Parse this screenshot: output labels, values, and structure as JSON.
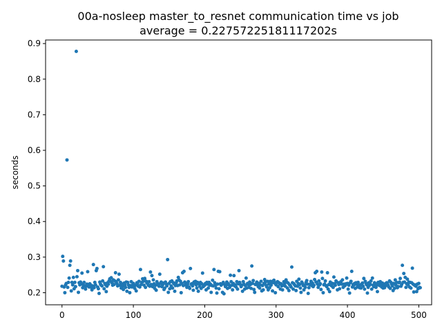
{
  "chart_data": {
    "type": "scatter",
    "title": "00a-nosleep master_to_resnet communication time vs job",
    "subtitle": "average = 0.22757225181117202s",
    "xlabel": "",
    "ylabel": "seconds",
    "xlim": [
      -23,
      518
    ],
    "ylim": [
      0.166,
      0.91
    ],
    "xticks": [
      0,
      100,
      200,
      300,
      400,
      500
    ],
    "xtick_labels": [
      "0",
      "100",
      "200",
      "300",
      "400",
      "500"
    ],
    "yticks": [
      0.2,
      0.3,
      0.4,
      0.5,
      0.6,
      0.7,
      0.8,
      0.9
    ],
    "ytick_labels": [
      "0.2",
      "0.3",
      "0.4",
      "0.5",
      "0.6",
      "0.7",
      "0.8",
      "0.9"
    ],
    "grid": false,
    "marker_color": "#1f77b4",
    "series": [
      {
        "values": [
          0.218,
          0.302,
          0.289,
          0.216,
          0.2,
          0.222,
          0.226,
          0.573,
          0.215,
          0.229,
          0.241,
          0.277,
          0.289,
          0.205,
          0.229,
          0.222,
          0.243,
          0.211,
          0.229,
          0.217,
          0.878,
          0.245,
          0.262,
          0.201,
          0.228,
          0.222,
          0.23,
          0.225,
          0.255,
          0.214,
          0.221,
          0.229,
          0.219,
          0.21,
          0.218,
          0.224,
          0.259,
          0.22,
          0.216,
          0.225,
          0.222,
          0.215,
          0.208,
          0.219,
          0.279,
          0.214,
          0.229,
          0.222,
          0.262,
          0.268,
          0.216,
          0.211,
          0.198,
          0.23,
          0.224,
          0.221,
          0.219,
          0.233,
          0.273,
          0.211,
          0.226,
          0.222,
          0.203,
          0.218,
          0.228,
          0.224,
          0.233,
          0.239,
          0.232,
          0.242,
          0.228,
          0.221,
          0.236,
          0.223,
          0.233,
          0.256,
          0.231,
          0.226,
          0.219,
          0.236,
          0.252,
          0.221,
          0.229,
          0.213,
          0.224,
          0.218,
          0.209,
          0.227,
          0.222,
          0.215,
          0.23,
          0.204,
          0.229,
          0.222,
          0.215,
          0.2,
          0.22,
          0.231,
          0.216,
          0.222,
          0.226,
          0.217,
          0.212,
          0.221,
          0.205,
          0.228,
          0.224,
          0.218,
          0.232,
          0.216,
          0.265,
          0.223,
          0.229,
          0.239,
          0.232,
          0.221,
          0.24,
          0.215,
          0.232,
          0.227,
          0.226,
          0.221,
          0.231,
          0.218,
          0.258,
          0.223,
          0.248,
          0.217,
          0.236,
          0.225,
          0.212,
          0.221,
          0.207,
          0.231,
          0.226,
          0.221,
          0.218,
          0.252,
          0.226,
          0.23,
          0.217,
          0.222,
          0.227,
          0.209,
          0.213,
          0.23,
          0.224,
          0.219,
          0.293,
          0.201,
          0.226,
          0.211,
          0.231,
          0.219,
          0.233,
          0.213,
          0.228,
          0.225,
          0.204,
          0.22,
          0.228,
          0.233,
          0.22,
          0.243,
          0.236,
          0.222,
          0.232,
          0.2,
          0.226,
          0.256,
          0.22,
          0.26,
          0.23,
          0.227,
          0.221,
          0.215,
          0.224,
          0.231,
          0.216,
          0.212,
          0.268,
          0.224,
          0.225,
          0.219,
          0.207,
          0.23,
          0.226,
          0.232,
          0.222,
          0.213,
          0.229,
          0.204,
          0.225,
          0.218,
          0.229,
          0.212,
          0.225,
          0.255,
          0.217,
          0.221,
          0.221,
          0.226,
          0.208,
          0.229,
          0.224,
          0.213,
          0.229,
          0.221,
          0.224,
          0.201,
          0.22,
          0.235,
          0.219,
          0.265,
          0.228,
          0.221,
          0.213,
          0.199,
          0.224,
          0.26,
          0.211,
          0.259,
          0.225,
          0.221,
          0.224,
          0.201,
          0.229,
          0.197,
          0.223,
          0.217,
          0.221,
          0.23,
          0.212,
          0.225,
          0.222,
          0.215,
          0.249,
          0.231,
          0.221,
          0.208,
          0.226,
          0.248,
          0.219,
          0.222,
          0.216,
          0.231,
          0.21,
          0.225,
          0.262,
          0.229,
          0.223,
          0.217,
          0.221,
          0.204,
          0.231,
          0.224,
          0.21,
          0.22,
          0.241,
          0.213,
          0.226,
          0.223,
          0.215,
          0.23,
          0.223,
          0.212,
          0.275,
          0.226,
          0.234,
          0.209,
          0.201,
          0.223,
          0.225,
          0.23,
          0.222,
          0.217,
          0.226,
          0.213,
          0.222,
          0.232,
          0.205,
          0.22,
          0.208,
          0.226,
          0.237,
          0.23,
          0.221,
          0.216,
          0.232,
          0.208,
          0.224,
          0.214,
          0.232,
          0.221,
          0.227,
          0.205,
          0.233,
          0.235,
          0.227,
          0.2,
          0.222,
          0.229,
          0.231,
          0.217,
          0.228,
          0.225,
          0.21,
          0.225,
          0.219,
          0.208,
          0.221,
          0.231,
          0.226,
          0.218,
          0.236,
          0.23,
          0.213,
          0.227,
          0.206,
          0.222,
          0.22,
          0.216,
          0.272,
          0.228,
          0.21,
          0.225,
          0.222,
          0.219,
          0.206,
          0.232,
          0.218,
          0.226,
          0.238,
          0.223,
          0.213,
          0.201,
          0.23,
          0.226,
          0.22,
          0.208,
          0.221,
          0.215,
          0.229,
          0.234,
          0.224,
          0.198,
          0.214,
          0.223,
          0.224,
          0.232,
          0.22,
          0.227,
          0.217,
          0.221,
          0.237,
          0.256,
          0.23,
          0.26,
          0.224,
          0.215,
          0.233,
          0.222,
          0.225,
          0.209,
          0.258,
          0.24,
          0.2,
          0.222,
          0.224,
          0.233,
          0.22,
          0.217,
          0.256,
          0.21,
          0.223,
          0.203,
          0.23,
          0.221,
          0.219,
          0.226,
          0.215,
          0.244,
          0.225,
          0.221,
          0.233,
          0.23,
          0.208,
          0.228,
          0.223,
          0.211,
          0.229,
          0.231,
          0.224,
          0.236,
          0.215,
          0.224,
          0.219,
          0.221,
          0.225,
          0.241,
          0.226,
          0.21,
          0.221,
          0.199,
          0.228,
          0.232,
          0.26,
          0.216,
          0.223,
          0.221,
          0.226,
          0.212,
          0.228,
          0.224,
          0.216,
          0.229,
          0.22,
          0.214,
          0.222,
          0.213,
          0.224,
          0.227,
          0.218,
          0.24,
          0.21,
          0.232,
          0.226,
          0.222,
          0.199,
          0.215,
          0.228,
          0.221,
          0.224,
          0.233,
          0.21,
          0.241,
          0.221,
          0.217,
          0.228,
          0.225,
          0.215,
          0.221,
          0.203,
          0.229,
          0.224,
          0.22,
          0.231,
          0.223,
          0.216,
          0.227,
          0.213,
          0.222,
          0.214,
          0.225,
          0.22,
          0.228,
          0.227,
          0.221,
          0.216,
          0.233,
          0.212,
          0.229,
          0.224,
          0.219,
          0.206,
          0.226,
          0.212,
          0.236,
          0.221,
          0.229,
          0.214,
          0.217,
          0.228,
          0.23,
          0.24,
          0.218,
          0.223,
          0.277,
          0.229,
          0.254,
          0.23,
          0.243,
          0.215,
          0.225,
          0.238,
          0.222,
          0.23,
          0.216,
          0.229,
          0.213,
          0.228,
          0.269,
          0.224,
          0.202,
          0.221,
          0.222,
          0.218,
          0.203,
          0.224,
          0.211,
          0.226,
          0.215,
          0.214
        ]
      }
    ]
  }
}
